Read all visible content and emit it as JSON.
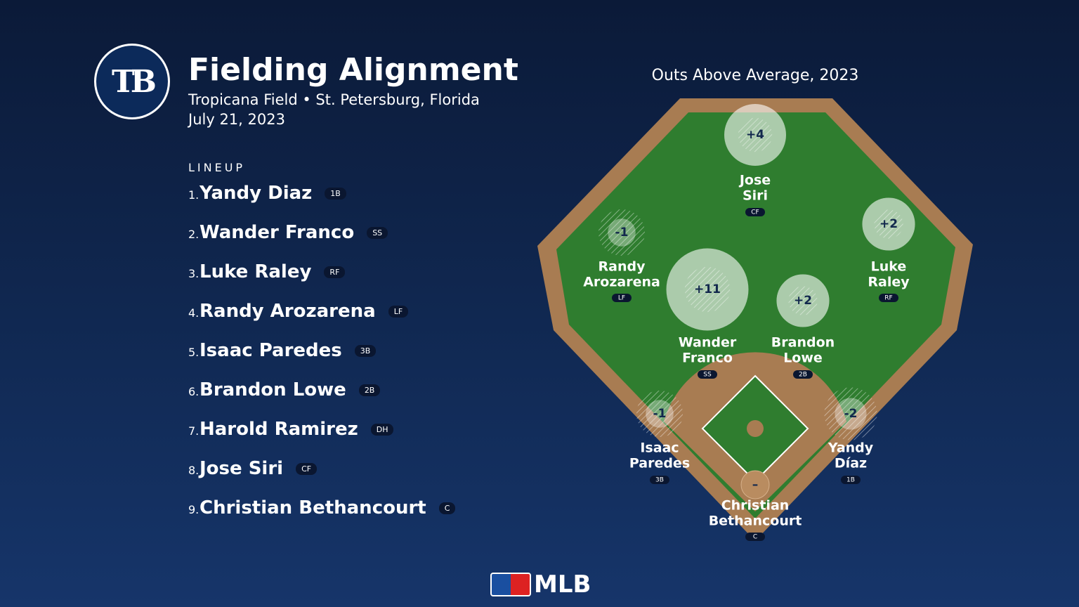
{
  "header": {
    "logo": "TB",
    "title": "Fielding Alignment",
    "subtitle": "Tropicana Field • St. Petersburg, Florida",
    "date": "July 21, 2023"
  },
  "lineup": {
    "heading": "LINEUP",
    "players": [
      {
        "order": "1.",
        "name": "Yandy Diaz",
        "position": "1B"
      },
      {
        "order": "2.",
        "name": "Wander Franco",
        "position": "SS"
      },
      {
        "order": "3.",
        "name": "Luke Raley",
        "position": "RF"
      },
      {
        "order": "4.",
        "name": "Randy Arozarena",
        "position": "LF"
      },
      {
        "order": "5.",
        "name": "Isaac Paredes",
        "position": "3B"
      },
      {
        "order": "6.",
        "name": "Brandon Lowe",
        "position": "2B"
      },
      {
        "order": "7.",
        "name": "Harold Ramirez",
        "position": "DH"
      },
      {
        "order": "8.",
        "name": "Jose Siri",
        "position": "CF"
      },
      {
        "order": "9.",
        "name": "Christian Bethancourt",
        "position": "C"
      }
    ]
  },
  "field": {
    "title": "Outs Above Average, 2023",
    "fielders": [
      {
        "value": 4,
        "label": "+4",
        "name_lines": [
          "Jose",
          "Siri"
        ],
        "position": "CF"
      },
      {
        "value": -1,
        "label": "-1",
        "name_lines": [
          "Randy",
          "Arozarena"
        ],
        "position": "LF"
      },
      {
        "value": 2,
        "label": "+2",
        "name_lines": [
          "Luke",
          "Raley"
        ],
        "position": "RF"
      },
      {
        "value": 11,
        "label": "+11",
        "name_lines": [
          "Wander",
          "Franco"
        ],
        "position": "SS"
      },
      {
        "value": 2,
        "label": "+2",
        "name_lines": [
          "Brandon",
          "Lowe"
        ],
        "position": "2B"
      },
      {
        "value": -1,
        "label": "-1",
        "name_lines": [
          "Isaac",
          "Paredes"
        ],
        "position": "3B"
      },
      {
        "value": -2,
        "label": "-2",
        "name_lines": [
          "Yandy",
          "Díaz"
        ],
        "position": "1B"
      },
      {
        "value": null,
        "label": "–",
        "name_lines": [
          "Christian",
          "Bethancourt"
        ],
        "position": "C"
      }
    ]
  },
  "footer": {
    "brand": "MLB"
  }
}
